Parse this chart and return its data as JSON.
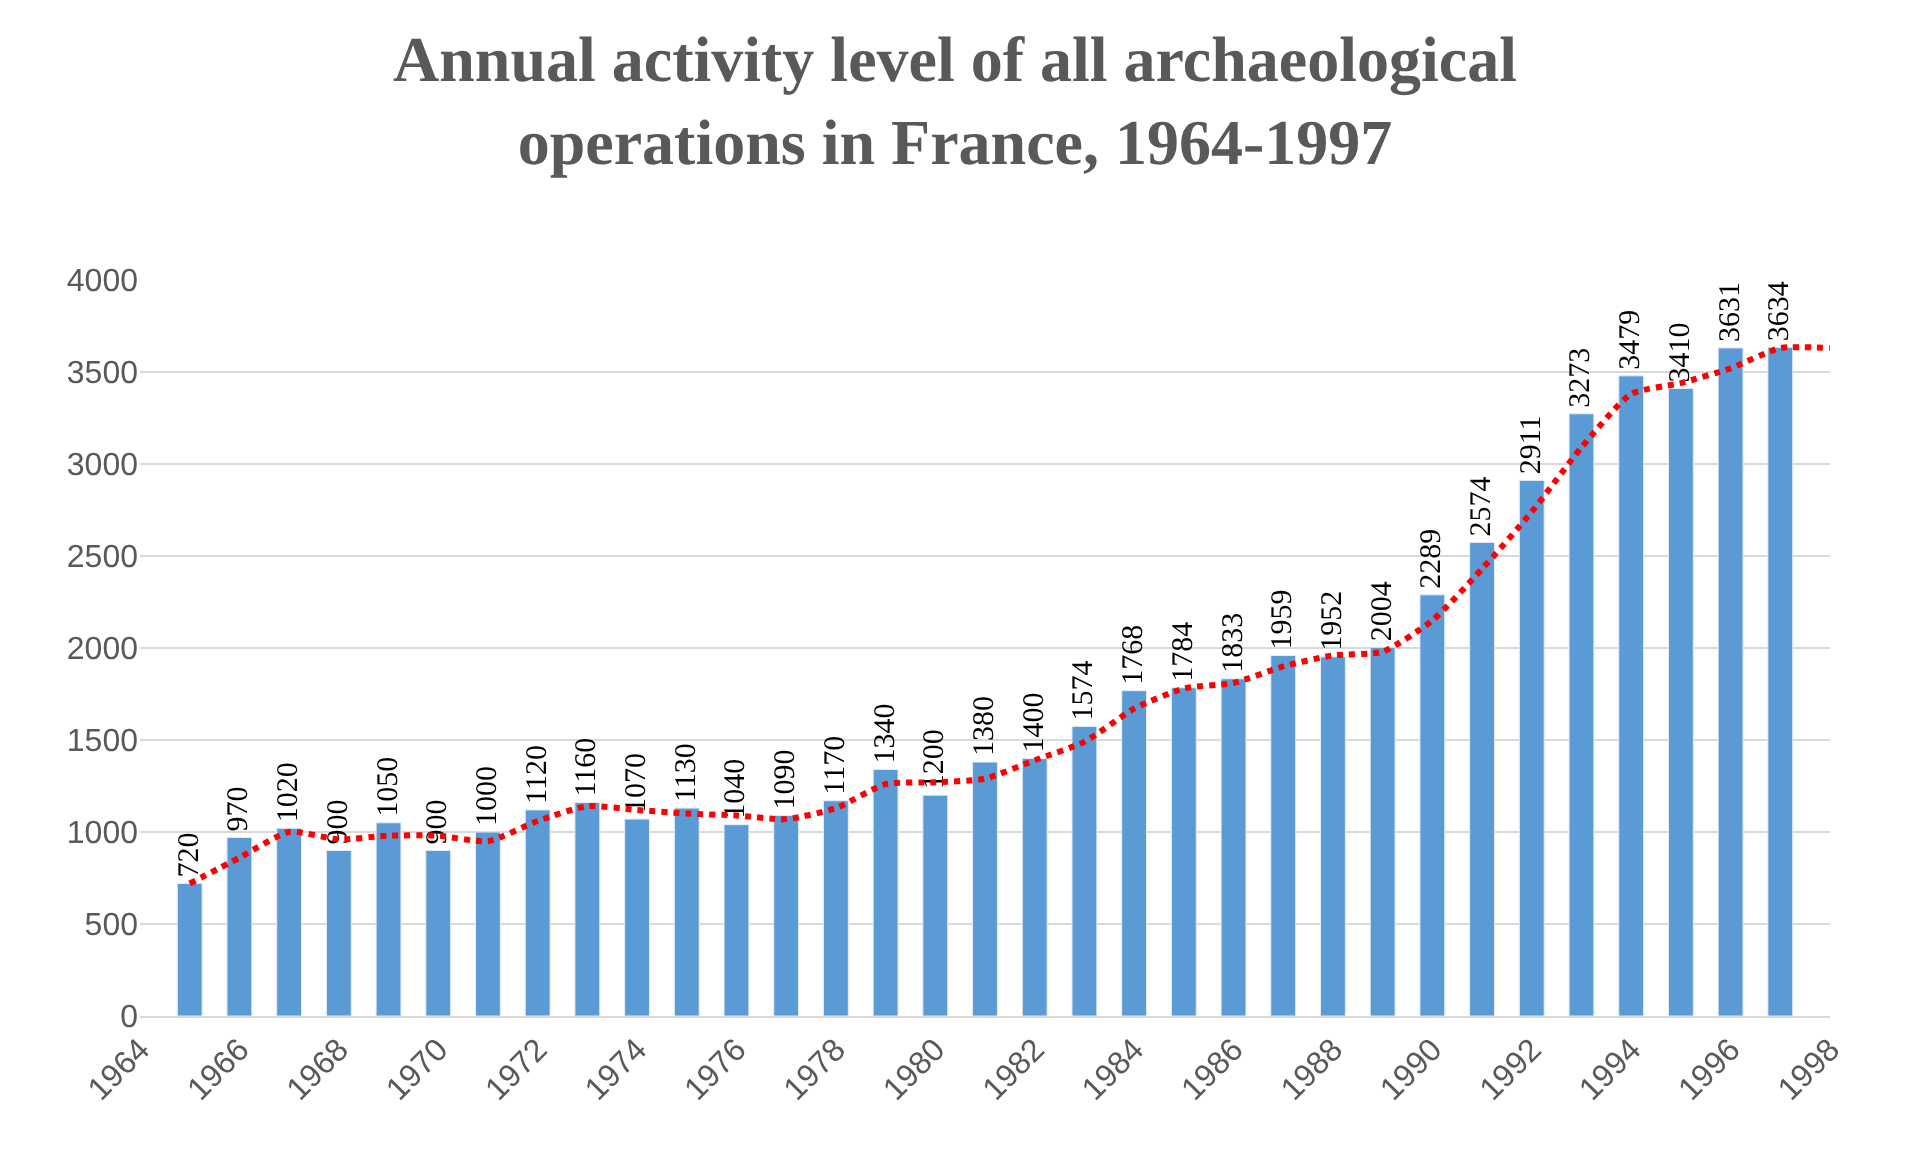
{
  "chart_data": {
    "type": "bar",
    "title": "Annual activity level of all archaeological operations in France, 1964-1997",
    "x": [
      1965,
      1966,
      1967,
      1968,
      1969,
      1970,
      1971,
      1972,
      1973,
      1974,
      1975,
      1976,
      1977,
      1978,
      1979,
      1980,
      1981,
      1982,
      1983,
      1984,
      1985,
      1986,
      1987,
      1988,
      1989,
      1990,
      1991,
      1992,
      1993,
      1994,
      1995,
      1996,
      1997
    ],
    "series": [
      {
        "color": "#5b9bd5",
        "values": [
          720,
          970,
          1020,
          900,
          1050,
          900,
          1000,
          1120,
          1160,
          1070,
          1130,
          1040,
          1090,
          1170,
          1340,
          1200,
          1380,
          1400,
          1574,
          1768,
          1784,
          1833,
          1959,
          1952,
          2004,
          2289,
          2574,
          2911,
          3273,
          3479,
          3410,
          3631,
          3634
        ]
      },
      {
        "type": "line",
        "color": "#ff0000",
        "line_style": "dotted",
        "x": [
          1965,
          1966,
          1967,
          1968,
          1969,
          1970,
          1971,
          1972,
          1973,
          1974,
          1975,
          1976,
          1977,
          1978,
          1979,
          1980,
          1981,
          1982,
          1983,
          1984,
          1985,
          1986,
          1987,
          1988,
          1989,
          1990,
          1991,
          1992,
          1993,
          1994,
          1995,
          1996,
          1997,
          1998
        ],
        "values": [
          720,
          860,
          1000,
          960,
          980,
          980,
          950,
          1060,
          1140,
          1120,
          1100,
          1090,
          1070,
          1130,
          1260,
          1270,
          1290,
          1390,
          1490,
          1670,
          1780,
          1810,
          1900,
          1960,
          1980,
          2150,
          2430,
          2740,
          3090,
          3380,
          3440,
          3520,
          3630,
          3630
        ]
      }
    ],
    "value_labels": [
      "720",
      "970",
      "1020",
      "900",
      "1050",
      "900",
      "1000",
      "1120",
      "1160",
      "1070",
      "1130",
      "1040",
      "1090",
      "1170",
      "1340",
      "1200",
      "1380",
      "1400",
      "1574",
      "1768",
      "1784",
      "1833",
      "1959",
      "1952",
      "2004",
      "2289",
      "2574",
      "2911",
      "3273",
      "3479",
      "3410",
      "3631",
      "3634"
    ],
    "xlim": [
      1964,
      1998
    ],
    "xticks": [
      1964,
      1966,
      1968,
      1970,
      1972,
      1974,
      1976,
      1978,
      1980,
      1982,
      1984,
      1986,
      1988,
      1990,
      1992,
      1994,
      1996,
      1998
    ],
    "ylim": [
      0,
      4000
    ],
    "yticks": [
      0,
      500,
      1000,
      1500,
      2000,
      2500,
      3000,
      3500,
      4000
    ],
    "grid": "y"
  }
}
